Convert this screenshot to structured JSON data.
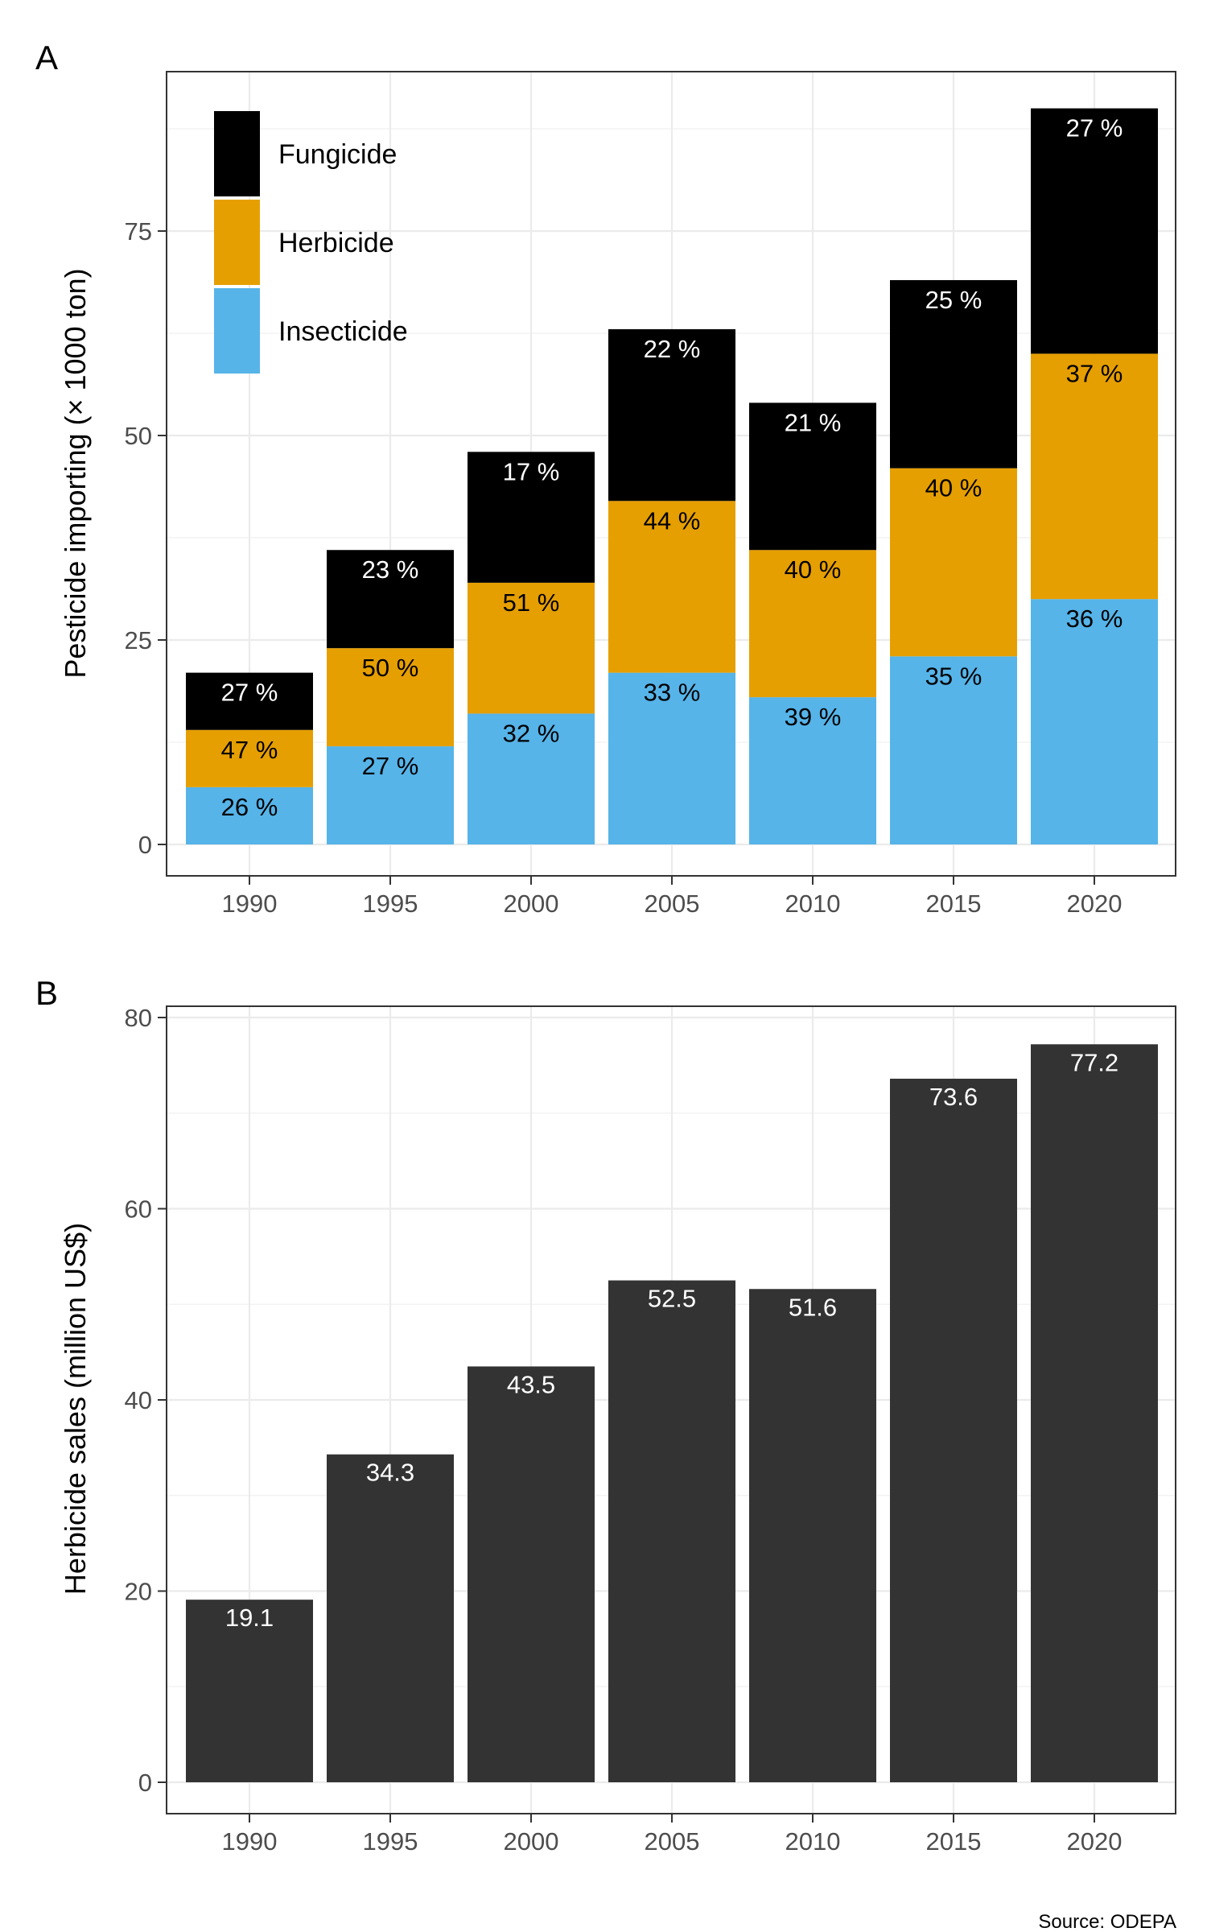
{
  "chart_data": [
    {
      "panel": "A",
      "type": "bar",
      "stacked": true,
      "ylabel": "Pesticide importing (× 1000 ton)",
      "xlabel": "",
      "categories": [
        "1990",
        "1995",
        "2000",
        "2005",
        "2010",
        "2015",
        "2020"
      ],
      "ylim": [
        0,
        92
      ],
      "yticks": [
        0,
        25,
        50,
        75
      ],
      "grid": true,
      "legend_position": "top-left",
      "series": [
        {
          "name": "Insecticide",
          "color": "#56B4E9",
          "label_color": "#000000",
          "values": [
            7,
            12,
            16,
            21,
            18,
            23,
            30
          ],
          "labels": [
            "26 %",
            "27 %",
            "32 %",
            "33 %",
            "39 %",
            "35 %",
            "36 %"
          ]
        },
        {
          "name": "Herbicide",
          "color": "#E69F00",
          "label_color": "#000000",
          "values": [
            7,
            12,
            16,
            21,
            18,
            23,
            30
          ],
          "labels": [
            "47 %",
            "50 %",
            "51 %",
            "44 %",
            "40 %",
            "40 %",
            "37 %"
          ]
        },
        {
          "name": "Fungicide",
          "color": "#000000",
          "label_color": "#ffffff",
          "values": [
            7,
            12,
            16,
            21,
            18,
            23,
            30
          ],
          "labels": [
            "27 %",
            "23 %",
            "17 %",
            "22 %",
            "21 %",
            "25 %",
            "27 %"
          ]
        }
      ],
      "legend_order": [
        "Fungicide",
        "Herbicide",
        "Insecticide"
      ]
    },
    {
      "panel": "B",
      "type": "bar",
      "ylabel": "Herbicide sales (million US$)",
      "xlabel": "",
      "categories": [
        "1990",
        "1995",
        "2000",
        "2005",
        "2010",
        "2015",
        "2020"
      ],
      "values": [
        19.1,
        34.3,
        43.5,
        52.5,
        51.6,
        73.6,
        77.2
      ],
      "labels": [
        "19.1",
        "34.3",
        "43.5",
        "52.5",
        "51.6",
        "73.6",
        "77.2"
      ],
      "color": "#333333",
      "ylim": [
        0,
        81
      ],
      "yticks": [
        0,
        20,
        40,
        60,
        80
      ],
      "grid": true
    }
  ],
  "caption": "Source: ODEPA"
}
